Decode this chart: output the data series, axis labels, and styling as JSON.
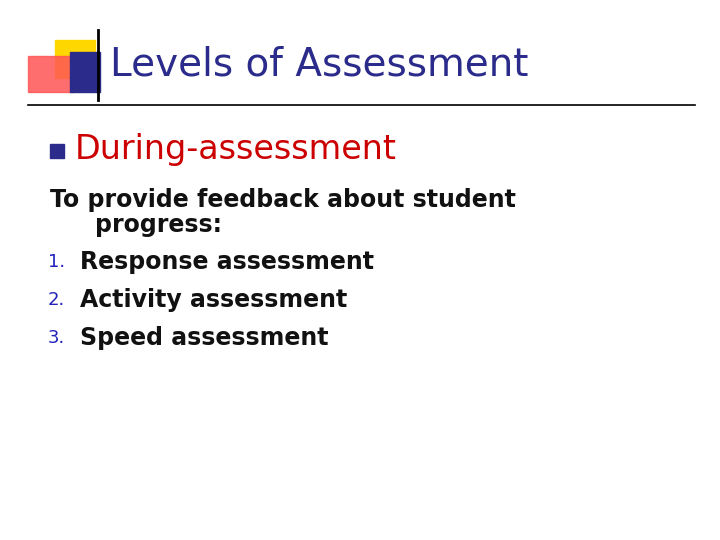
{
  "title": "Levels of Assessment",
  "title_color": "#2B2B8B",
  "title_fontsize": 28,
  "bullet_label": "During-assessment",
  "bullet_label_color": "#CC0000",
  "bullet_label_fontsize": 24,
  "bullet_square_color": "#2B2B8B",
  "body_line1": "To provide feedback about student",
  "body_line2": "        progress:",
  "body_fontsize": 17,
  "body_color": "#111111",
  "items": [
    "Response assessment",
    "Activity assessment",
    "Speed assessment"
  ],
  "item_fontsize": 17,
  "item_color": "#111111",
  "item_numbers_color": "#2222BB",
  "bg_color": "#FFFFFF",
  "line_color": "#000000",
  "deco_yellow": "#FFD700",
  "deco_red": "#FF5555",
  "deco_blue": "#2B2B8B",
  "deco_blue_thin": "#4444BB"
}
